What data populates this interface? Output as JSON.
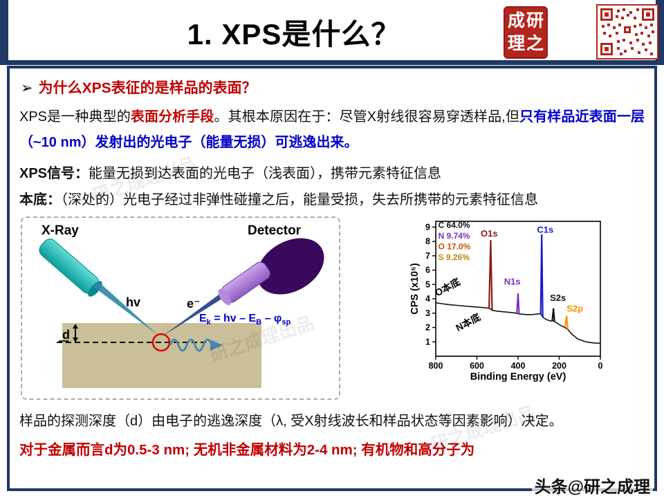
{
  "title": "1. XPS是什么？",
  "header": {
    "seal_chars": [
      "成",
      "研",
      "理",
      "之"
    ]
  },
  "body": {
    "bullet": "➢",
    "question": "为什么XPS表征的是样品的表面？",
    "p1_r1": "XPS是一种典型的",
    "p1_r2": "表面分析手段",
    "p1_r3": "。其根本原因在于：尽管X射线很容易穿透样品,但",
    "p1_r4": "只有样品近表面一层（~10 nm）发射出的光电子（能量无损）可逃逸出来。",
    "p2_label": "XPS信号：",
    "p2_text": "能量无损到达表面的光电子（浅表面），携带元素特征信息",
    "p3_label": "本底：",
    "p3_text": "（深处的）光电子经过非弹性碰撞之后，能量受损，失去所携带的元素特征信息",
    "p4": "样品的探测深度（d）由电子的逃逸深度（λ, 受X射线波长和样品状态等因素影响）决定。",
    "p5": "对于金属而言d为0.5-3 nm; 无机非金属材料为2-4 nm; 有机物和高分子为"
  },
  "diagram": {
    "xray": "X-Ray",
    "detector": "Detector",
    "hv": "hv",
    "electron": "e⁻",
    "d": "d",
    "formula": {
      "e1": "E",
      "s1": "k",
      "m1": " = hv – E",
      "s2": "B",
      "m2": " – φ",
      "s3": "sp"
    }
  },
  "chart_data": {
    "type": "line",
    "title": "",
    "xlabel": "Binding Energy (eV)",
    "ylabel": "CPS (x10⁵)",
    "xlim": [
      800,
      0
    ],
    "ylim": [
      0,
      9.4
    ],
    "x_ticks": [
      800,
      600,
      400,
      200,
      0
    ],
    "y_ticks": [
      1,
      2,
      3,
      4,
      5,
      6,
      7,
      8,
      9
    ],
    "background_series": {
      "name": "survey-background",
      "color": "#111111",
      "points": [
        [
          800,
          3.72
        ],
        [
          740,
          3.6
        ],
        [
          680,
          3.52
        ],
        [
          620,
          3.45
        ],
        [
          560,
          3.38
        ],
        [
          545,
          3.35
        ],
        [
          541,
          3.36
        ],
        [
          526,
          3.2
        ],
        [
          500,
          3.14
        ],
        [
          460,
          3.08
        ],
        [
          430,
          3.04
        ],
        [
          408,
          3.0
        ],
        [
          395,
          2.95
        ],
        [
          360,
          2.9
        ],
        [
          330,
          2.9
        ],
        [
          300,
          2.95
        ],
        [
          290,
          2.98
        ],
        [
          280,
          2.72
        ],
        [
          262,
          2.55
        ],
        [
          240,
          2.45
        ],
        [
          234,
          2.48
        ],
        [
          223,
          2.42
        ],
        [
          210,
          2.3
        ],
        [
          190,
          2.12
        ],
        [
          174,
          2.02
        ],
        [
          158,
          1.87
        ],
        [
          140,
          1.55
        ],
        [
          110,
          1.2
        ],
        [
          70,
          1.0
        ],
        [
          30,
          0.92
        ],
        [
          0,
          0.9
        ]
      ]
    },
    "peaks": [
      {
        "label": "O1s",
        "color": "#8b1a1a",
        "points": [
          [
            541,
            3.36
          ],
          [
            533,
            8.05
          ],
          [
            526,
            3.2
          ]
        ],
        "label_pos": [
          540,
          8.35
        ]
      },
      {
        "label": "N1s",
        "color": "#7d2fc2",
        "points": [
          [
            406,
            3.0
          ],
          [
            400,
            4.35
          ],
          [
            395,
            2.95
          ]
        ],
        "label_pos": [
          428,
          5.0
        ]
      },
      {
        "label": "C1s",
        "color": "#1a1acc",
        "points": [
          [
            290,
            2.98
          ],
          [
            285,
            8.45
          ],
          [
            280,
            2.72
          ]
        ],
        "label_pos": [
          268,
          8.6
        ]
      },
      {
        "label": "S2s",
        "color": "#111111",
        "points": [
          [
            234,
            2.48
          ],
          [
            228,
            3.3
          ],
          [
            223,
            2.42
          ]
        ],
        "label_pos": [
          206,
          3.85
        ]
      },
      {
        "label": "S2p",
        "color": "#ff8c00",
        "points": [
          [
            171,
            2.03
          ],
          [
            164,
            2.78
          ],
          [
            158,
            1.87
          ]
        ],
        "label_pos": [
          124,
          3.1
        ]
      }
    ],
    "legend": [
      {
        "text": "C 64.0%",
        "color": "#111111"
      },
      {
        "text": "N 9.74%",
        "color": "#7d2fc2"
      },
      {
        "text": "O 17.0%",
        "color": "#cc5500"
      },
      {
        "text": "S 9.26%",
        "color": "#b8860b"
      }
    ],
    "legend_pos": {
      "x": 788,
      "y_start": 8.95,
      "y_step": 0.75
    },
    "annotations": [
      {
        "text": "O本底",
        "x": 735,
        "y": 4.6,
        "angle": -28
      },
      {
        "text": "N本底",
        "x": 635,
        "y": 2.15,
        "angle": -28
      }
    ]
  },
  "footer": {
    "watermark": "头条@研之成理",
    "faint_watermark": "研之成理出品"
  }
}
